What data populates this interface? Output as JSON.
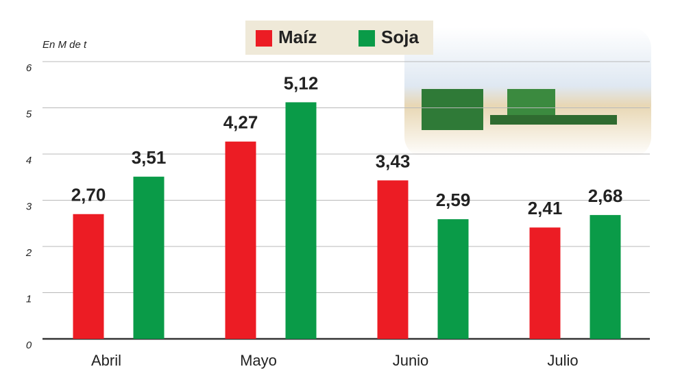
{
  "chart_data": {
    "type": "bar",
    "unit_label": "En M de t",
    "categories": [
      "Abril",
      "Mayo",
      "Junio",
      "Julio"
    ],
    "series": [
      {
        "name": "Maíz",
        "color": "#ec1c24",
        "values": [
          2.7,
          4.27,
          3.43,
          2.41
        ],
        "value_labels": [
          "2,70",
          "4,27",
          "3,43",
          "2,41"
        ]
      },
      {
        "name": "Soja",
        "color": "#0a9b48",
        "values": [
          3.51,
          5.12,
          2.59,
          2.68
        ],
        "value_labels": [
          "3,51",
          "5,12",
          "2,59",
          "2,68"
        ]
      }
    ],
    "ylim": [
      0,
      6
    ],
    "yticks": [
      0,
      1,
      2,
      3,
      4,
      5,
      6
    ],
    "grid": true
  }
}
